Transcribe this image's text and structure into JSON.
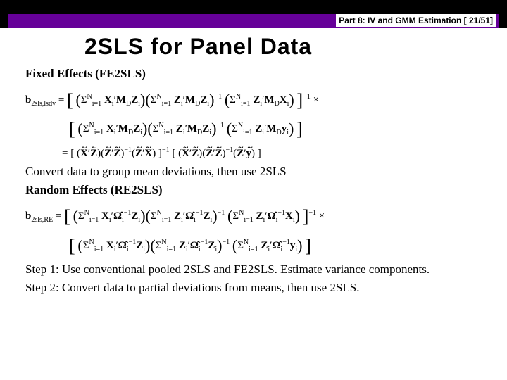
{
  "header": {
    "band_bg": "#000000",
    "purple_bg": "#660099",
    "label": "Part 8: IV and GMM Estimation [ 21/51]"
  },
  "title": "2SLS for Panel Data",
  "fe": {
    "heading": "Fixed Effects (FE2SLS)",
    "eq_line1_prefix": "b",
    "eq_line1_sub": "2sls,lsdv",
    "eq_line1_body": " = [ (Σᴺᵢ₌₁ Xᵢ′ M_D Zᵢ)(Σᴺᵢ₌₁ Zᵢ′ M_D Zᵢ)⁻¹ (Σᴺᵢ₌₁ Zᵢ′ M_D Xᵢ) ]⁻¹ ×",
    "eq_line2": "[ (Σᴺᵢ₌₁ Xᵢ′ M_D Zᵢ)(Σᴺᵢ₌₁ Zᵢ′ M_D Zᵢ)⁻¹ (Σᴺᵢ₌₁ Zᵢ′ M_D yᵢ) ]",
    "eq_line3": "= [ (X̃′Z̃)(Z̃′Z̃)⁻¹(Z̃′X̃) ]⁻¹ [ (X̃′Z̃)(Z̃′Z̃)⁻¹(Z̃′ỹ) ]",
    "note": "Convert data to group mean deviations, then use 2SLS"
  },
  "re": {
    "heading": "Random Effects (RE2SLS)",
    "eq_line1_prefix": "b",
    "eq_line1_sub": "2sls,RE",
    "eq_line1_body": " = [ (Σᴺᵢ₌₁ Xᵢ′ Ω̂ᵢ⁻¹ Zᵢ)(Σᴺᵢ₌₁ Zᵢ′ Ω̂ᵢ⁻¹ Zᵢ)⁻¹ (Σᴺᵢ₌₁ Zᵢ′ Ω̂ᵢ⁻¹ Xᵢ) ]⁻¹ ×",
    "eq_line2": "[ (Σᴺᵢ₌₁ Xᵢ′ Ω̂ᵢ⁻¹ Zᵢ)(Σᴺᵢ₌₁ Zᵢ′ Ω̂ᵢ⁻¹ Zᵢ)⁻¹ (Σᴺᵢ₌₁ Zᵢ′ Ω̂ᵢ⁻¹ yᵢ) ]"
  },
  "steps": {
    "s1": "Step 1: Use conventional pooled 2SLS and FE2SLS.  Estimate variance components.",
    "s2": "Step 2: Convert data to partial deviations from means, then use 2SLS."
  },
  "style": {
    "title_fontsize": 32,
    "body_fontsize": 17,
    "eq_fontsize": 15,
    "text_color": "#000000",
    "background": "#ffffff"
  }
}
